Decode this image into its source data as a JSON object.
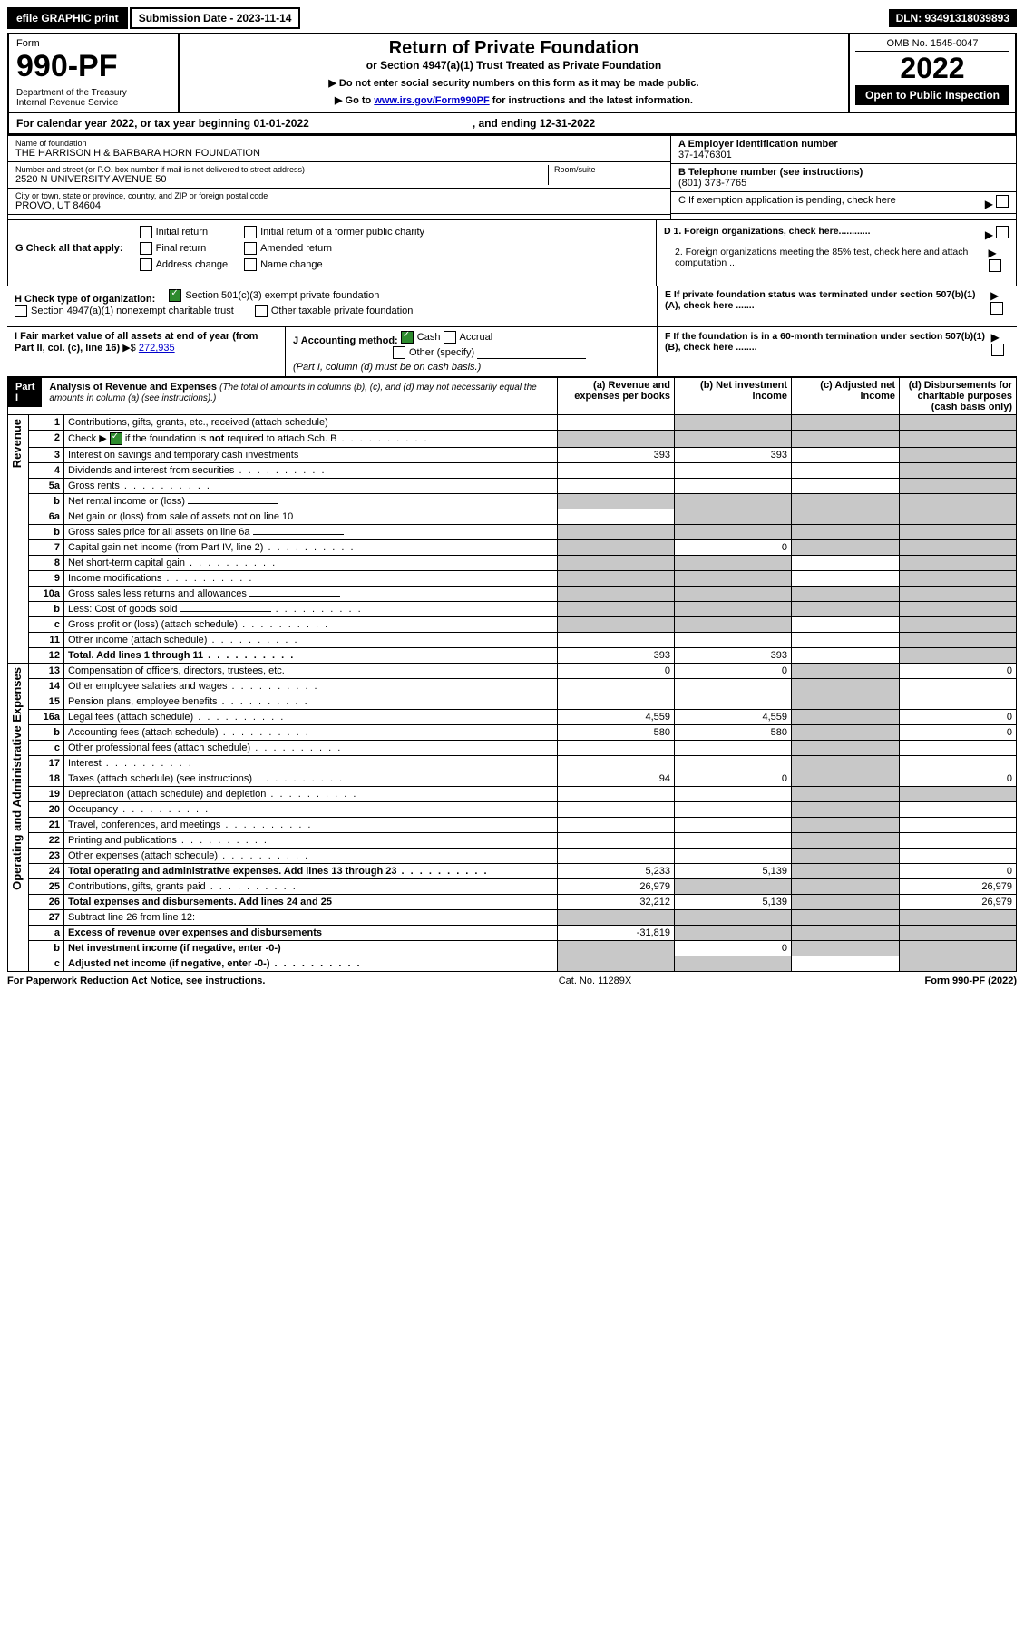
{
  "top": {
    "efile": "efile GRAPHIC print",
    "submission": "Submission Date - 2023-11-14",
    "dln": "DLN: 93491318039893"
  },
  "header": {
    "form_label": "Form",
    "form_num": "990-PF",
    "dept": "Department of the Treasury\nInternal Revenue Service",
    "title": "Return of Private Foundation",
    "subtitle": "or Section 4947(a)(1) Trust Treated as Private Foundation",
    "instr1": "▶ Do not enter social security numbers on this form as it may be made public.",
    "instr2_pre": "▶ Go to ",
    "instr2_link": "www.irs.gov/Form990PF",
    "instr2_post": " for instructions and the latest information.",
    "omb": "OMB No. 1545-0047",
    "year": "2022",
    "open": "Open to Public Inspection"
  },
  "cal": {
    "text": "For calendar year 2022, or tax year beginning 01-01-2022",
    "ending": ", and ending 12-31-2022"
  },
  "entity": {
    "name_label": "Name of foundation",
    "name": "THE HARRISON H & BARBARA HORN FOUNDATION",
    "addr_label": "Number and street (or P.O. box number if mail is not delivered to street address)",
    "addr": "2520 N UNIVERSITY AVENUE 50",
    "room_label": "Room/suite",
    "city_label": "City or town, state or province, country, and ZIP or foreign postal code",
    "city": "PROVO, UT  84604",
    "ein_label": "A Employer identification number",
    "ein": "37-1476301",
    "phone_label": "B Telephone number (see instructions)",
    "phone": "(801) 373-7765",
    "c_label": "C If exemption application is pending, check here"
  },
  "g": {
    "label": "G Check all that apply:",
    "opts": [
      "Initial return",
      "Final return",
      "Address change",
      "Initial return of a former public charity",
      "Amended return",
      "Name change"
    ]
  },
  "d": {
    "d1": "D 1. Foreign organizations, check here............",
    "d2": "2. Foreign organizations meeting the 85% test, check here and attach computation ..."
  },
  "e": "E  If private foundation status was terminated under section 507(b)(1)(A), check here .......",
  "h": {
    "label": "H Check type of organization:",
    "opt1": "Section 501(c)(3) exempt private foundation",
    "opt2": "Section 4947(a)(1) nonexempt charitable trust",
    "opt3": "Other taxable private foundation"
  },
  "i": {
    "label": "I Fair market value of all assets at end of year (from Part II, col. (c), line 16)",
    "arrow": "▶$",
    "value": "272,935"
  },
  "j": {
    "label": "J Accounting method:",
    "cash": "Cash",
    "accrual": "Accrual",
    "other": "Other (specify)",
    "note": "(Part I, column (d) must be on cash basis.)"
  },
  "f": "F  If the foundation is in a 60-month termination under section 507(b)(1)(B), check here ........",
  "part1": {
    "tag": "Part I",
    "title": "Analysis of Revenue and Expenses",
    "note": "(The total of amounts in columns (b), (c), and (d) may not necessarily equal the amounts in column (a) (see instructions).)",
    "col_a": "(a)   Revenue and expenses per books",
    "col_b": "(b)   Net investment income",
    "col_c": "(c)   Adjusted net income",
    "col_d": "(d)   Disbursements for charitable purposes (cash basis only)",
    "revenue_label": "Revenue",
    "expenses_label": "Operating and Administrative Expenses"
  },
  "lines": [
    {
      "n": "1",
      "label": "Contributions, gifts, grants, etc., received (attach schedule)",
      "a": "",
      "b": "grey",
      "c": "grey",
      "d": "grey"
    },
    {
      "n": "2",
      "label": "Check ▶ ☑ if the foundation is not required to attach Sch. B",
      "a": "grey",
      "b": "grey",
      "c": "grey",
      "d": "grey",
      "dotted": true
    },
    {
      "n": "3",
      "label": "Interest on savings and temporary cash investments",
      "a": "393",
      "b": "393",
      "c": "",
      "d": "grey"
    },
    {
      "n": "4",
      "label": "Dividends and interest from securities",
      "a": "",
      "b": "",
      "c": "",
      "d": "grey",
      "dotted": true
    },
    {
      "n": "5a",
      "label": "Gross rents",
      "a": "",
      "b": "",
      "c": "",
      "d": "grey",
      "dotted": true
    },
    {
      "n": "b",
      "label": "Net rental income or (loss)",
      "a": "grey",
      "b": "grey",
      "c": "grey",
      "d": "grey",
      "underline": true
    },
    {
      "n": "6a",
      "label": "Net gain or (loss) from sale of assets not on line 10",
      "a": "",
      "b": "grey",
      "c": "grey",
      "d": "grey"
    },
    {
      "n": "b",
      "label": "Gross sales price for all assets on line 6a",
      "a": "grey",
      "b": "grey",
      "c": "grey",
      "d": "grey",
      "underline": true
    },
    {
      "n": "7",
      "label": "Capital gain net income (from Part IV, line 2)",
      "a": "grey",
      "b": "0",
      "c": "grey",
      "d": "grey",
      "dotted": true
    },
    {
      "n": "8",
      "label": "Net short-term capital gain",
      "a": "grey",
      "b": "grey",
      "c": "",
      "d": "grey",
      "dotted": true
    },
    {
      "n": "9",
      "label": "Income modifications",
      "a": "grey",
      "b": "grey",
      "c": "",
      "d": "grey",
      "dotted": true
    },
    {
      "n": "10a",
      "label": "Gross sales less returns and allowances",
      "a": "grey",
      "b": "grey",
      "c": "grey",
      "d": "grey",
      "underline": true
    },
    {
      "n": "b",
      "label": "Less: Cost of goods sold",
      "a": "grey",
      "b": "grey",
      "c": "grey",
      "d": "grey",
      "underline": true,
      "dotted": true
    },
    {
      "n": "c",
      "label": "Gross profit or (loss) (attach schedule)",
      "a": "grey",
      "b": "grey",
      "c": "",
      "d": "grey",
      "dotted": true
    },
    {
      "n": "11",
      "label": "Other income (attach schedule)",
      "a": "",
      "b": "",
      "c": "",
      "d": "grey",
      "dotted": true
    },
    {
      "n": "12",
      "label": "Total. Add lines 1 through 11",
      "a": "393",
      "b": "393",
      "c": "",
      "d": "grey",
      "bold": true,
      "dotted": true
    }
  ],
  "exp_lines": [
    {
      "n": "13",
      "label": "Compensation of officers, directors, trustees, etc.",
      "a": "0",
      "b": "0",
      "c": "grey",
      "d": "0"
    },
    {
      "n": "14",
      "label": "Other employee salaries and wages",
      "a": "",
      "b": "",
      "c": "grey",
      "d": "",
      "dotted": true
    },
    {
      "n": "15",
      "label": "Pension plans, employee benefits",
      "a": "",
      "b": "",
      "c": "grey",
      "d": "",
      "dotted": true
    },
    {
      "n": "16a",
      "label": "Legal fees (attach schedule)",
      "a": "4,559",
      "b": "4,559",
      "c": "grey",
      "d": "0",
      "dotted": true
    },
    {
      "n": "b",
      "label": "Accounting fees (attach schedule)",
      "a": "580",
      "b": "580",
      "c": "grey",
      "d": "0",
      "dotted": true
    },
    {
      "n": "c",
      "label": "Other professional fees (attach schedule)",
      "a": "",
      "b": "",
      "c": "grey",
      "d": "",
      "dotted": true
    },
    {
      "n": "17",
      "label": "Interest",
      "a": "",
      "b": "",
      "c": "grey",
      "d": "",
      "dotted": true
    },
    {
      "n": "18",
      "label": "Taxes (attach schedule) (see instructions)",
      "a": "94",
      "b": "0",
      "c": "grey",
      "d": "0",
      "dotted": true
    },
    {
      "n": "19",
      "label": "Depreciation (attach schedule) and depletion",
      "a": "",
      "b": "",
      "c": "grey",
      "d": "grey",
      "dotted": true
    },
    {
      "n": "20",
      "label": "Occupancy",
      "a": "",
      "b": "",
      "c": "grey",
      "d": "",
      "dotted": true
    },
    {
      "n": "21",
      "label": "Travel, conferences, and meetings",
      "a": "",
      "b": "",
      "c": "grey",
      "d": "",
      "dotted": true
    },
    {
      "n": "22",
      "label": "Printing and publications",
      "a": "",
      "b": "",
      "c": "grey",
      "d": "",
      "dotted": true
    },
    {
      "n": "23",
      "label": "Other expenses (attach schedule)",
      "a": "",
      "b": "",
      "c": "grey",
      "d": "",
      "dotted": true
    },
    {
      "n": "24",
      "label": "Total operating and administrative expenses. Add lines 13 through 23",
      "a": "5,233",
      "b": "5,139",
      "c": "grey",
      "d": "0",
      "bold": true,
      "dotted": true
    },
    {
      "n": "25",
      "label": "Contributions, gifts, grants paid",
      "a": "26,979",
      "b": "grey",
      "c": "grey",
      "d": "26,979",
      "dotted": true
    },
    {
      "n": "26",
      "label": "Total expenses and disbursements. Add lines 24 and 25",
      "a": "32,212",
      "b": "5,139",
      "c": "grey",
      "d": "26,979",
      "bold": true
    },
    {
      "n": "27",
      "label": "Subtract line 26 from line 12:",
      "a": "grey",
      "b": "grey",
      "c": "grey",
      "d": "grey"
    },
    {
      "n": "a",
      "label": "Excess of revenue over expenses and disbursements",
      "a": "-31,819",
      "b": "grey",
      "c": "grey",
      "d": "grey",
      "bold": true
    },
    {
      "n": "b",
      "label": "Net investment income (if negative, enter -0-)",
      "a": "grey",
      "b": "0",
      "c": "grey",
      "d": "grey",
      "bold": true
    },
    {
      "n": "c",
      "label": "Adjusted net income (if negative, enter -0-)",
      "a": "grey",
      "b": "grey",
      "c": "",
      "d": "grey",
      "bold": true,
      "dotted": true
    }
  ],
  "footer": {
    "left": "For Paperwork Reduction Act Notice, see instructions.",
    "mid": "Cat. No. 11289X",
    "right": "Form 990-PF (2022)"
  },
  "colors": {
    "link": "#0000cc",
    "grey": "#c8c8c8",
    "check_green": "#2e8b2e"
  }
}
